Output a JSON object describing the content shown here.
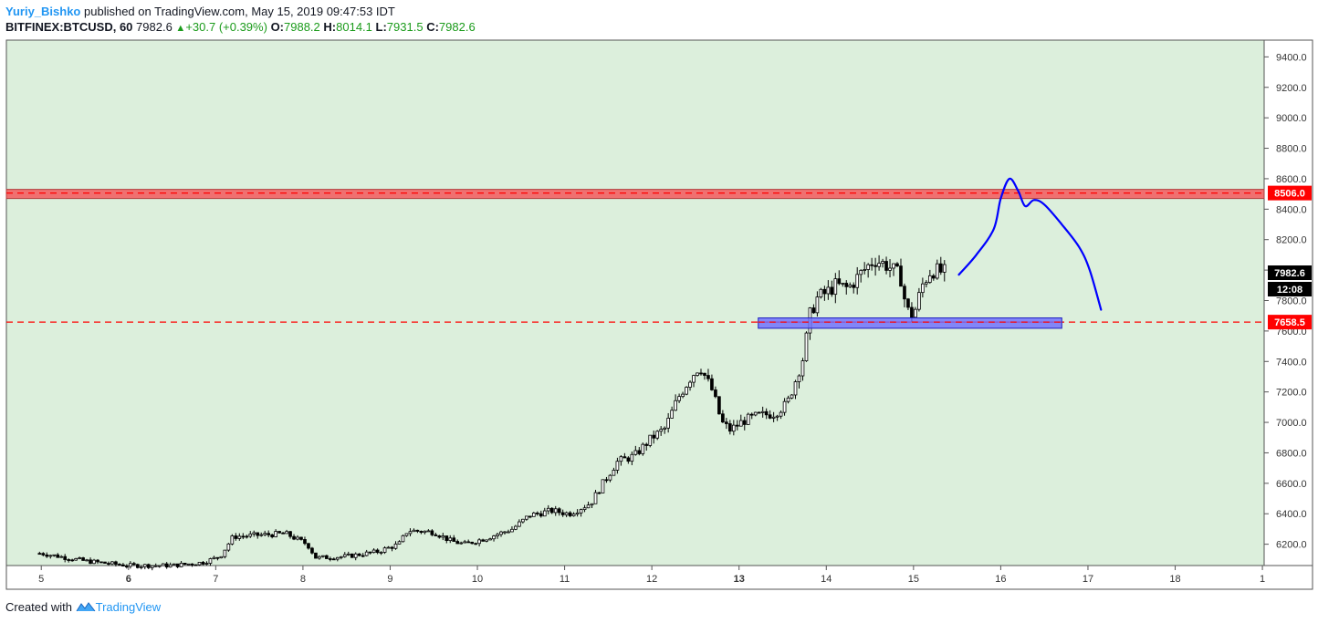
{
  "header": {
    "author": "Yuriy_Bishko",
    "published_text": "published on TradingView.com, May 15, 2019 09:47:53 IDT",
    "symbol": "BITFINEX:BTCUSD, 60",
    "last": "7982.6",
    "arrow": "▲",
    "change": "+30.7 (+0.39%)",
    "o_label": "O:",
    "o_val": "7988.2",
    "h_label": "H:",
    "h_val": "8014.1",
    "l_label": "L:",
    "l_val": "7931.5",
    "c_label": "C:",
    "c_val": "7982.6"
  },
  "footer": {
    "created_with": "Created with",
    "brand": "TradingView",
    "logo_icon": "tradingview-logo-icon"
  },
  "colors": {
    "background": "#dcefdc",
    "candle_up": "#ffffff",
    "candle_down": "#000000",
    "resistance_zone": "#f07070",
    "support_zone": "#6b6bff",
    "dashed_line": "#ff0000",
    "projection": "#0000ff",
    "price_tag_red": "#ff0000",
    "price_tag_black": "#000000"
  },
  "chart_data": {
    "type": "candlestick",
    "symbol": "BITFINEX:BTCUSD",
    "interval": "60",
    "ylim": [
      6060,
      9510
    ],
    "y_ticks": [
      "6200.0",
      "6400.0",
      "6600.0",
      "6800.0",
      "7000.0",
      "7200.0",
      "7400.0",
      "7600.0",
      "7800.0",
      "8000.0",
      "8200.0",
      "8400.0",
      "8600.0",
      "8800.0",
      "9000.0",
      "9200.0",
      "9400.0"
    ],
    "x_ticks": [
      {
        "label": "5",
        "day": 5,
        "bold": false
      },
      {
        "label": "6",
        "day": 6,
        "bold": true
      },
      {
        "label": "7",
        "day": 7,
        "bold": false
      },
      {
        "label": "8",
        "day": 8,
        "bold": false
      },
      {
        "label": "9",
        "day": 9,
        "bold": false
      },
      {
        "label": "10",
        "day": 10,
        "bold": false
      },
      {
        "label": "11",
        "day": 11,
        "bold": false
      },
      {
        "label": "12",
        "day": 12,
        "bold": false
      },
      {
        "label": "13",
        "day": 13,
        "bold": true
      },
      {
        "label": "14",
        "day": 14,
        "bold": false
      },
      {
        "label": "15",
        "day": 15,
        "bold": false
      },
      {
        "label": "16",
        "day": 16,
        "bold": false
      },
      {
        "label": "17",
        "day": 17,
        "bold": false
      },
      {
        "label": "18",
        "day": 18,
        "bold": false
      },
      {
        "label": "1",
        "day": 19,
        "bold": false
      }
    ],
    "xlim_days": [
      4.6,
      19.02
    ],
    "price_anchors_day_price": [
      [
        5.0,
        6140
      ],
      [
        5.5,
        6090
      ],
      [
        6.0,
        6060
      ],
      [
        6.5,
        6060
      ],
      [
        6.85,
        6080
      ],
      [
        7.05,
        6120
      ],
      [
        7.2,
        6250
      ],
      [
        7.5,
        6260
      ],
      [
        7.8,
        6270
      ],
      [
        8.05,
        6200
      ],
      [
        8.15,
        6110
      ],
      [
        8.5,
        6120
      ],
      [
        8.85,
        6150
      ],
      [
        9.1,
        6200
      ],
      [
        9.2,
        6290
      ],
      [
        9.5,
        6280
      ],
      [
        9.7,
        6220
      ],
      [
        9.85,
        6200
      ],
      [
        10.1,
        6240
      ],
      [
        10.25,
        6270
      ],
      [
        10.4,
        6300
      ],
      [
        10.6,
        6390
      ],
      [
        10.85,
        6420
      ],
      [
        11.05,
        6400
      ],
      [
        11.3,
        6470
      ],
      [
        11.45,
        6610
      ],
      [
        11.6,
        6740
      ],
      [
        11.8,
        6780
      ],
      [
        12.0,
        6900
      ],
      [
        12.15,
        6960
      ],
      [
        12.3,
        7160
      ],
      [
        12.45,
        7300
      ],
      [
        12.55,
        7370
      ],
      [
        12.7,
        7200
      ],
      [
        12.8,
        7000
      ],
      [
        12.9,
        6950
      ],
      [
        13.05,
        7010
      ],
      [
        13.2,
        7040
      ],
      [
        13.4,
        7060
      ],
      [
        13.55,
        7120
      ],
      [
        13.65,
        7280
      ],
      [
        13.75,
        7450
      ],
      [
        13.8,
        7690
      ],
      [
        13.9,
        7820
      ],
      [
        14.0,
        7850
      ],
      [
        14.1,
        7900
      ],
      [
        14.25,
        7880
      ],
      [
        14.4,
        7980
      ],
      [
        14.55,
        8070
      ],
      [
        14.7,
        8030
      ],
      [
        14.85,
        7960
      ],
      [
        14.92,
        7740
      ],
      [
        15.0,
        7700
      ],
      [
        15.1,
        7900
      ],
      [
        15.2,
        8000
      ],
      [
        15.35,
        7985
      ]
    ],
    "resistance_zone": {
      "label": "8506.0",
      "level": 8506.0,
      "top": 8530,
      "bottom": 8470,
      "from_day": 4.6
    },
    "support_zone": {
      "label": "7658.5",
      "level": 7658.5,
      "top": 7686,
      "bottom": 7618,
      "from_day": 13.22,
      "to_day": 16.7
    },
    "last_price_tag": "7982.6",
    "countdown_tag": "12:08",
    "projection_path_day_price": [
      [
        15.52,
        7970
      ],
      [
        15.72,
        8100
      ],
      [
        15.92,
        8270
      ],
      [
        16.0,
        8470
      ],
      [
        16.1,
        8600
      ],
      [
        16.2,
        8520
      ],
      [
        16.28,
        8420
      ],
      [
        16.38,
        8460
      ],
      [
        16.5,
        8430
      ],
      [
        16.7,
        8300
      ],
      [
        16.9,
        8150
      ],
      [
        17.02,
        8000
      ],
      [
        17.15,
        7740
      ]
    ]
  }
}
